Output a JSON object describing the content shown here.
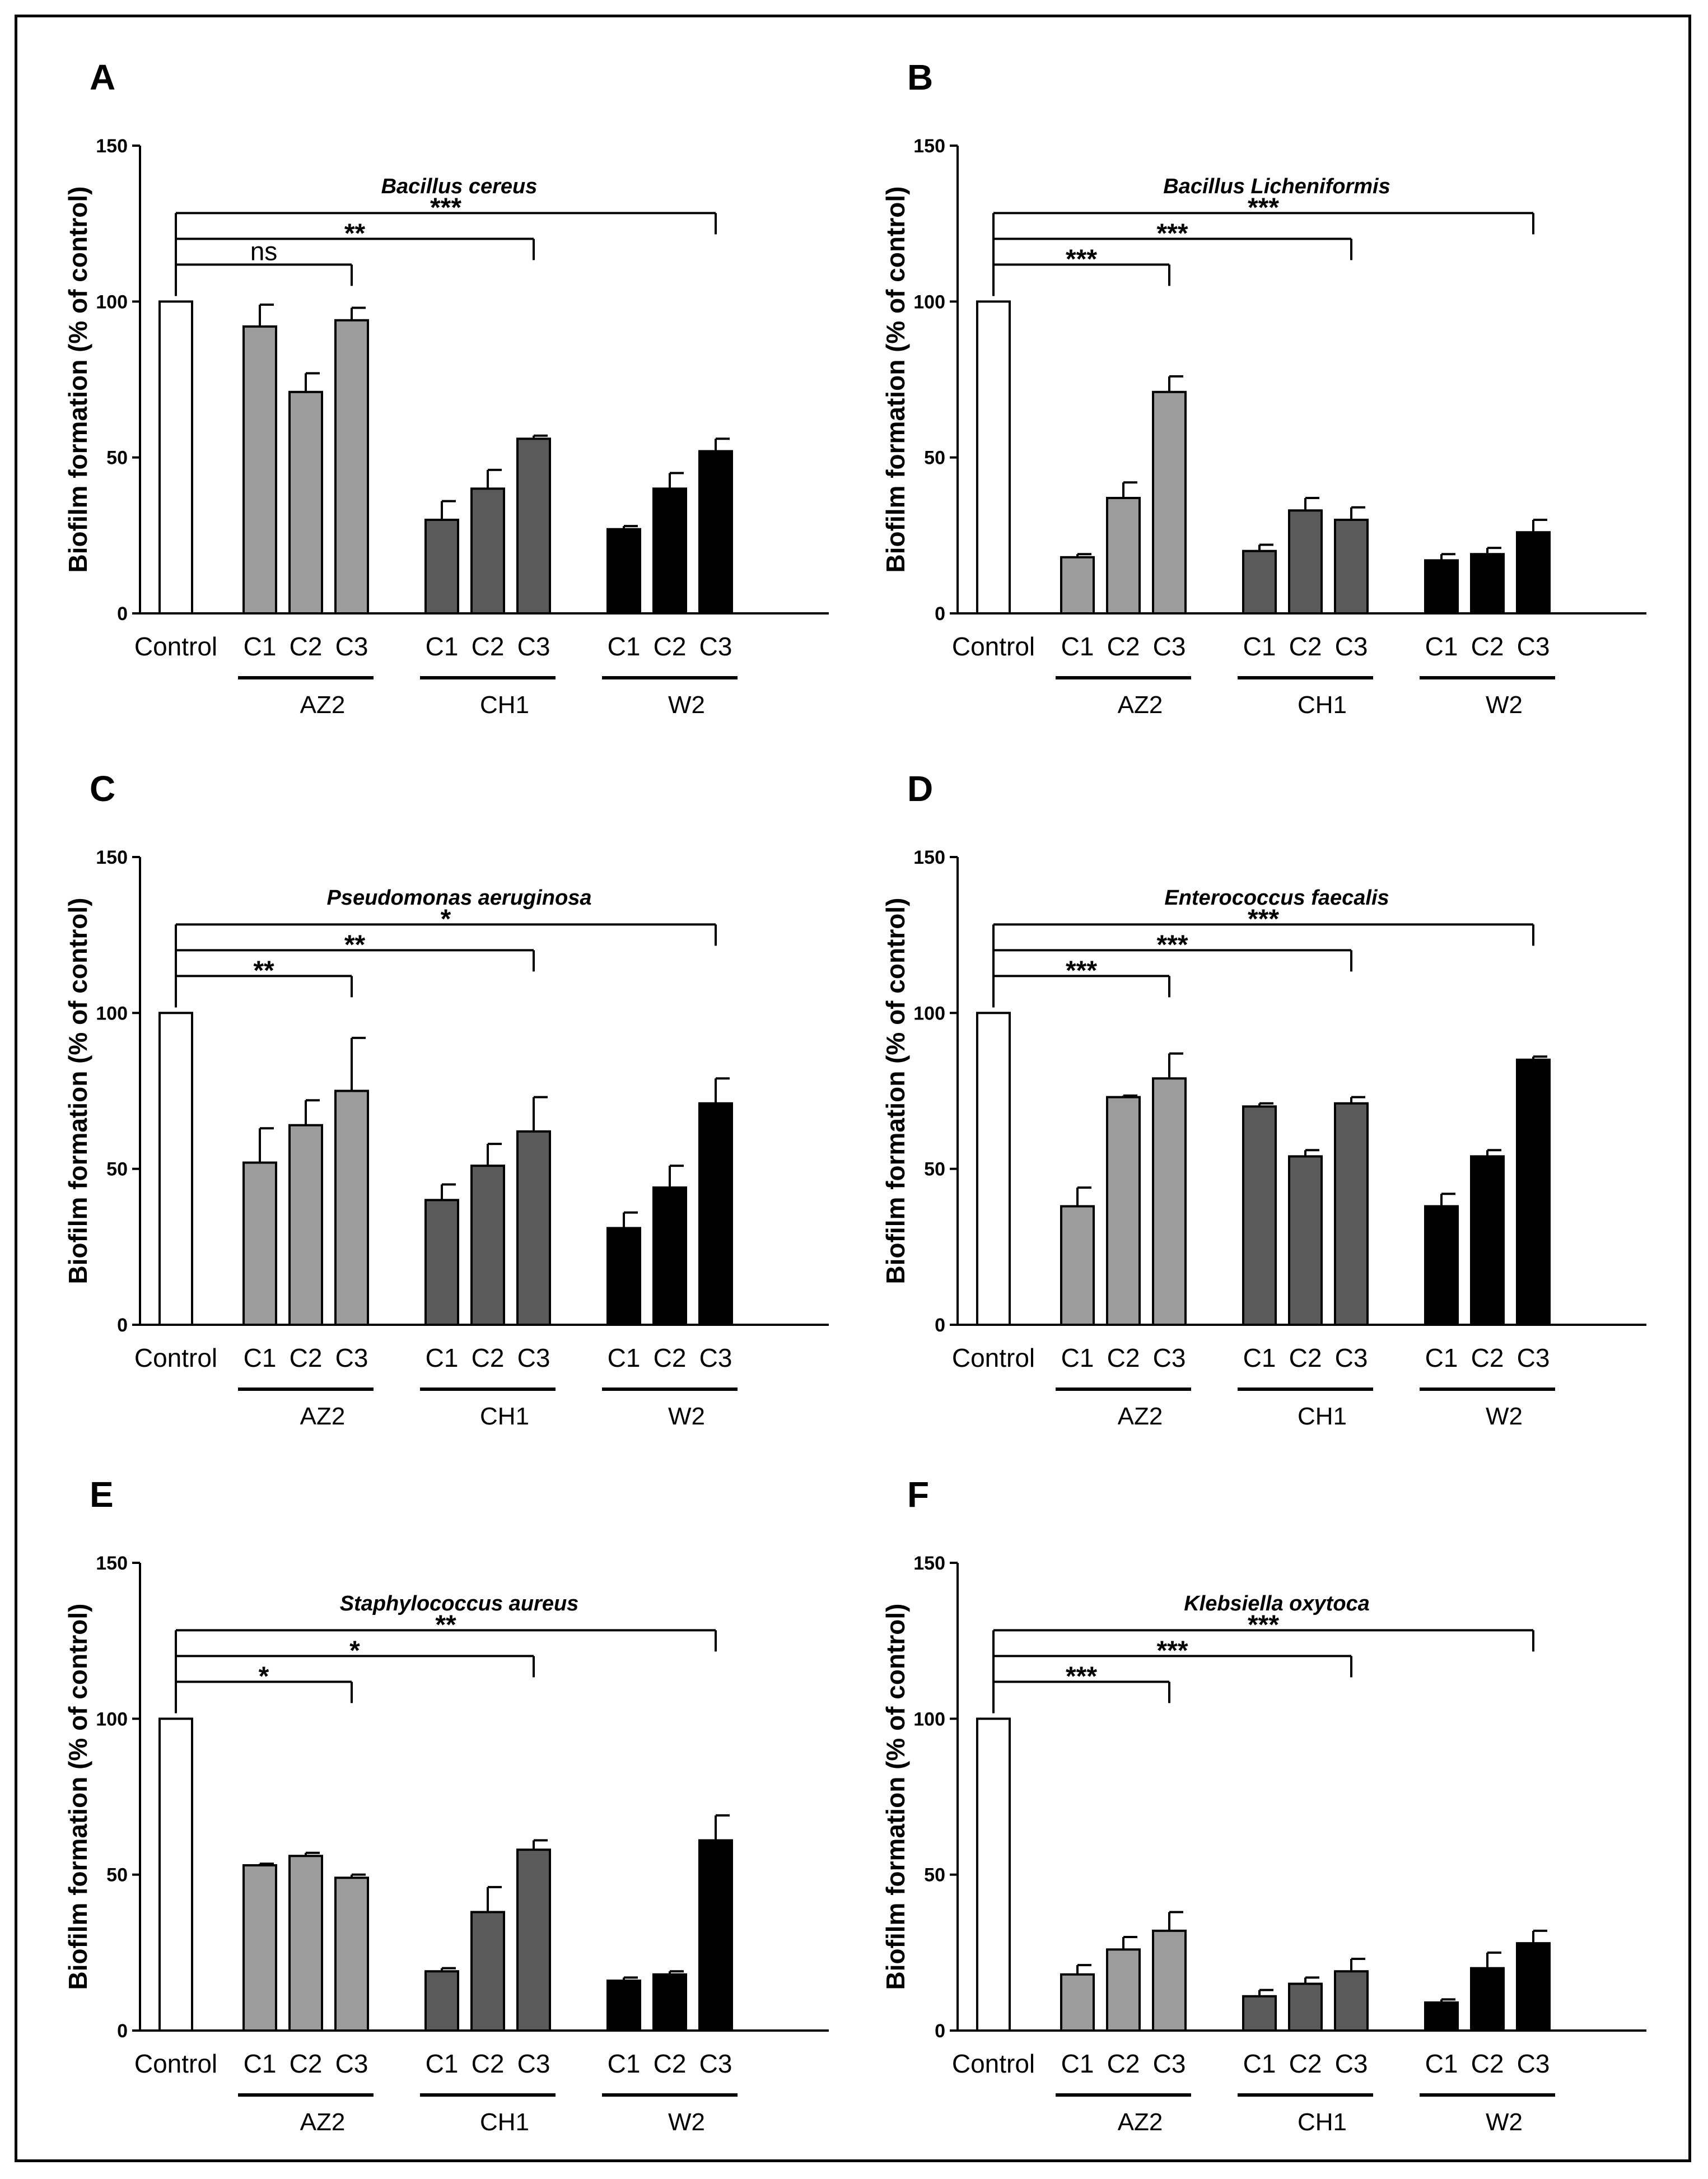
{
  "chart_data": [
    {
      "type": "bar",
      "panel": "A",
      "title": "Bacillus cereus",
      "ylabel": "Biofilm formation (% of control)",
      "ylim": [
        0,
        150
      ],
      "yticks": [
        "0",
        "50",
        "100",
        "150"
      ],
      "categories": [
        "Control",
        "C1",
        "C2",
        "C3",
        "C1",
        "C2",
        "C3",
        "C1",
        "C2",
        "C3"
      ],
      "groups": [
        "AZ2",
        "CH1",
        "W2"
      ],
      "values": [
        100,
        92,
        71,
        94,
        30,
        40,
        56,
        27,
        40,
        52
      ],
      "errors": [
        0,
        7,
        6,
        4,
        6,
        6,
        1,
        1,
        5,
        4
      ],
      "significance": [
        {
          "to_index": 3,
          "label": "ns"
        },
        {
          "to_index": 6,
          "label": "**"
        },
        {
          "to_index": 9,
          "label": "***"
        }
      ]
    },
    {
      "type": "bar",
      "panel": "B",
      "title": "Bacillus  Licheniformis",
      "ylabel": "Biofilm formation (% of control)",
      "ylim": [
        0,
        150
      ],
      "yticks": [
        "0",
        "50",
        "100",
        "150"
      ],
      "categories": [
        "Control",
        "C1",
        "C2",
        "C3",
        "C1",
        "C2",
        "C3",
        "C1",
        "C2",
        "C3"
      ],
      "groups": [
        "AZ2",
        "CH1",
        "W2"
      ],
      "values": [
        100,
        18,
        37,
        71,
        20,
        33,
        30,
        17,
        19,
        26
      ],
      "errors": [
        0,
        1,
        5,
        5,
        2,
        4,
        4,
        2,
        2,
        4
      ],
      "significance": [
        {
          "to_index": 3,
          "label": "***"
        },
        {
          "to_index": 6,
          "label": "***"
        },
        {
          "to_index": 9,
          "label": "***"
        }
      ]
    },
    {
      "type": "bar",
      "panel": "C",
      "title": "Pseudomonas aeruginosa",
      "ylabel": "Biofilm formation (% of control)",
      "ylim": [
        0,
        150
      ],
      "yticks": [
        "0",
        "50",
        "100",
        "150"
      ],
      "categories": [
        "Control",
        "C1",
        "C2",
        "C3",
        "C1",
        "C2",
        "C3",
        "C1",
        "C2",
        "C3"
      ],
      "groups": [
        "AZ2",
        "CH1",
        "W2"
      ],
      "values": [
        100,
        52,
        64,
        75,
        40,
        51,
        62,
        31,
        44,
        71
      ],
      "errors": [
        0,
        11,
        8,
        17,
        5,
        7,
        11,
        5,
        7,
        8
      ],
      "significance": [
        {
          "to_index": 3,
          "label": "**"
        },
        {
          "to_index": 6,
          "label": "**"
        },
        {
          "to_index": 9,
          "label": "*"
        }
      ]
    },
    {
      "type": "bar",
      "panel": "D",
      "title": "Enterococcus faecalis",
      "ylabel": "Biofilm formation (% of control)",
      "ylim": [
        0,
        150
      ],
      "yticks": [
        "0",
        "50",
        "100",
        "150"
      ],
      "categories": [
        "Control",
        "C1",
        "C2",
        "C3",
        "C1",
        "C2",
        "C3",
        "C1",
        "C2",
        "C3"
      ],
      "groups": [
        "AZ2",
        "CH1",
        "W2"
      ],
      "values": [
        100,
        38,
        73,
        79,
        70,
        54,
        71,
        38,
        54,
        85
      ],
      "errors": [
        0,
        6,
        0.5,
        8,
        1,
        2,
        2,
        4,
        2,
        1
      ],
      "significance": [
        {
          "to_index": 3,
          "label": "***"
        },
        {
          "to_index": 6,
          "label": "***"
        },
        {
          "to_index": 9,
          "label": "***"
        }
      ]
    },
    {
      "type": "bar",
      "panel": "E",
      "title": "Staphylococcus aureus",
      "ylabel": "Biofilm formation (% of control)",
      "ylim": [
        0,
        150
      ],
      "yticks": [
        "0",
        "50",
        "100",
        "150"
      ],
      "categories": [
        "Control",
        "C1",
        "C2",
        "C3",
        "C1",
        "C2",
        "C3",
        "C1",
        "C2",
        "C3"
      ],
      "groups": [
        "AZ2",
        "CH1",
        "W2"
      ],
      "values": [
        100,
        53,
        56,
        49,
        19,
        38,
        58,
        16,
        18,
        61
      ],
      "errors": [
        0,
        0.5,
        1,
        1,
        1,
        8,
        3,
        1,
        1,
        8
      ],
      "significance": [
        {
          "to_index": 3,
          "label": "*"
        },
        {
          "to_index": 6,
          "label": "*"
        },
        {
          "to_index": 9,
          "label": "**"
        }
      ]
    },
    {
      "type": "bar",
      "panel": "F",
      "title": "Klebsiella oxytoca",
      "ylabel": "Biofilm formation (% of control)",
      "ylim": [
        0,
        150
      ],
      "yticks": [
        "0",
        "50",
        "100",
        "150"
      ],
      "categories": [
        "Control",
        "C1",
        "C2",
        "C3",
        "C1",
        "C2",
        "C3",
        "C1",
        "C2",
        "C3"
      ],
      "groups": [
        "AZ2",
        "CH1",
        "W2"
      ],
      "values": [
        100,
        18,
        26,
        32,
        11,
        15,
        19,
        9,
        20,
        28
      ],
      "errors": [
        0,
        3,
        4,
        6,
        2,
        2,
        4,
        1,
        5,
        4
      ],
      "significance": [
        {
          "to_index": 3,
          "label": "***"
        },
        {
          "to_index": 6,
          "label": "***"
        },
        {
          "to_index": 9,
          "label": "***"
        }
      ]
    }
  ],
  "colors": {
    "control": "#ffffff",
    "AZ2": "#9c9c9c",
    "CH1": "#5a5a5a",
    "W2": "#000000",
    "stroke": "#000000"
  }
}
